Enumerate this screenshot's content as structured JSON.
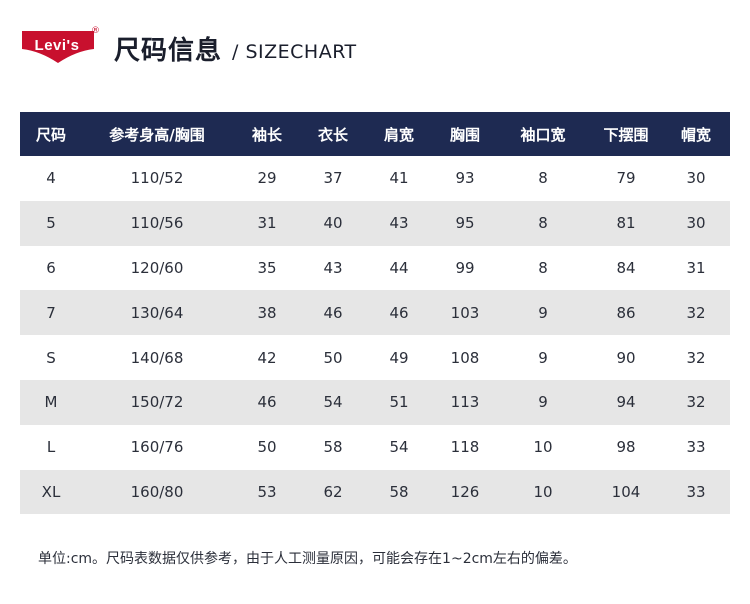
{
  "brand": {
    "name": "Levi's",
    "reg_mark": "®",
    "color": "#c8102e"
  },
  "header": {
    "title": "尺码信息",
    "subtitle": "/ SIZECHART"
  },
  "table": {
    "header_color": "#1e2a52",
    "columns": [
      "尺码",
      "参考身高/胸围",
      "袖长",
      "衣长",
      "肩宽",
      "胸围",
      "袖口宽",
      "下摆围",
      "帽宽"
    ],
    "rows": [
      [
        "4",
        "110/52",
        "29",
        "37",
        "41",
        "93",
        "8",
        "79",
        "30"
      ],
      [
        "5",
        "110/56",
        "31",
        "40",
        "43",
        "95",
        "8",
        "81",
        "30"
      ],
      [
        "6",
        "120/60",
        "35",
        "43",
        "44",
        "99",
        "8",
        "84",
        "31"
      ],
      [
        "7",
        "130/64",
        "38",
        "46",
        "46",
        "103",
        "9",
        "86",
        "32"
      ],
      [
        "S",
        "140/68",
        "42",
        "50",
        "49",
        "108",
        "9",
        "90",
        "32"
      ],
      [
        "M",
        "150/72",
        "46",
        "54",
        "51",
        "113",
        "9",
        "94",
        "32"
      ],
      [
        "L",
        "160/76",
        "50",
        "58",
        "54",
        "118",
        "10",
        "98",
        "33"
      ],
      [
        "XL",
        "160/80",
        "53",
        "62",
        "58",
        "126",
        "10",
        "104",
        "33"
      ]
    ]
  },
  "note": "单位:cm。尺码表数据仅供参考，由于人工测量原因，可能会存在1~2cm左右的偏差。"
}
